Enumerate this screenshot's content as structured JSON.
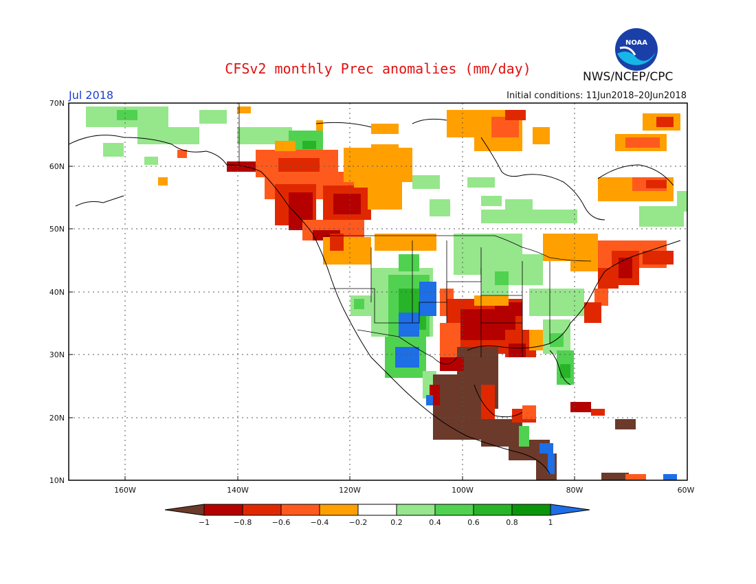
{
  "header": {
    "title": "CFSv2 monthly Prec anomalies (mm/day)",
    "month": "Jul 2018",
    "initial_conditions": "Initial conditions: 11Jun2018–20Jun2018",
    "agency": "NWS/NCEP/CPC",
    "logo_text": "NOAA"
  },
  "axes": {
    "lat_labels": [
      "70N",
      "60N",
      "50N",
      "40N",
      "30N",
      "20N",
      "10N"
    ],
    "lon_labels": [
      "160W",
      "140W",
      "120W",
      "100W",
      "80W",
      "60W"
    ]
  },
  "legend": {
    "labels": [
      "−1",
      "−0.8",
      "−0.6",
      "−0.4",
      "−0.2",
      "0.2",
      "0.4",
      "0.6",
      "0.8",
      "1"
    ],
    "colors": [
      "#6b3a2a",
      "#b50000",
      "#e02800",
      "#ff5a1e",
      "#ffa000",
      "#ffffff",
      "#96e68c",
      "#50d250",
      "#28b428",
      "#0a960a",
      "#1e6ee6"
    ]
  },
  "anomaly_regions": [
    {
      "name": "pacific-northwest-dry",
      "color": "#b50000"
    },
    {
      "name": "south-central-dry",
      "color": "#b50000"
    },
    {
      "name": "mexico-very-dry",
      "color": "#6b3a2a"
    },
    {
      "name": "southwest-wet",
      "color": "#1e6ee6"
    },
    {
      "name": "northeast-dry",
      "color": "#e02800"
    },
    {
      "name": "alaska-wet",
      "color": "#96e68c"
    }
  ]
}
